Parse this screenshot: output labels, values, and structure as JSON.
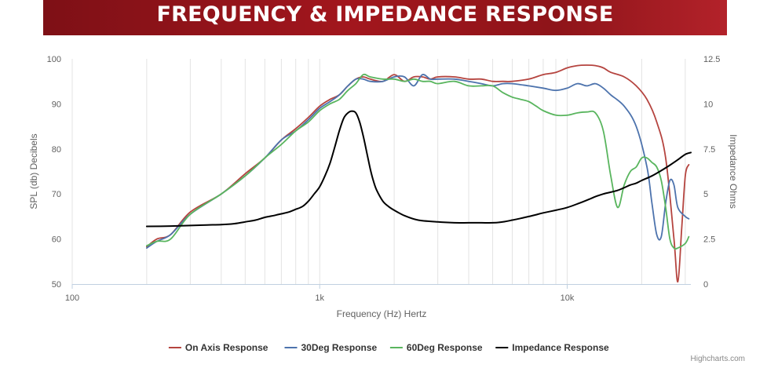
{
  "banner": {
    "title": "FREQUENCY & IMPEDANCE RESPONSE"
  },
  "credit": "Highcharts.com",
  "chart_data": {
    "type": "line",
    "title": "FREQUENCY & IMPEDANCE RESPONSE",
    "xlabel": "Frequency (Hz) Hertz",
    "xscale": "log",
    "xlim": [
      100,
      31600
    ],
    "x_ticks": [
      100,
      1000,
      10000
    ],
    "x_tick_labels": [
      "100",
      "1k",
      "10k"
    ],
    "ylabel": "SPL (db) Decibels",
    "ylim": [
      50,
      100
    ],
    "y_ticks": [
      50,
      60,
      70,
      80,
      90,
      100
    ],
    "y2label": "Impedance Ohms",
    "y2lim": [
      0,
      12.5
    ],
    "y2_ticks": [
      0,
      2.5,
      5,
      7.5,
      10,
      12.5
    ],
    "grid": "vertical",
    "legend_position": "bottom-center",
    "series": [
      {
        "name": "On Axis Response",
        "color": "#b5443f",
        "axis": "left",
        "x": [
          200,
          220,
          250,
          300,
          400,
          500,
          600,
          700,
          800,
          900,
          1000,
          1100,
          1200,
          1300,
          1400,
          1500,
          1600,
          1800,
          2000,
          2200,
          2400,
          2600,
          2800,
          3000,
          3500,
          4000,
          4500,
          5000,
          5500,
          6000,
          7000,
          8000,
          9000,
          10000,
          11000,
          12000,
          13000,
          14000,
          15000,
          17000,
          19000,
          21000,
          23000,
          25000,
          27000,
          28000,
          29000,
          30000,
          31000
        ],
        "y": [
          58.3,
          60,
          61,
          66,
          70,
          74.5,
          78,
          82,
          84.5,
          87,
          89.5,
          91,
          92,
          94,
          95.5,
          96,
          95.5,
          95,
          96.5,
          95,
          96,
          96,
          95.5,
          96,
          96,
          95.5,
          95.5,
          95,
          95,
          95,
          95.5,
          96.5,
          97,
          98,
          98.5,
          98.6,
          98.5,
          98,
          97,
          96,
          94,
          91,
          86,
          78,
          60,
          50.5,
          62,
          74,
          76.5
        ]
      },
      {
        "name": "30Deg Response",
        "color": "#4d73ad",
        "axis": "left",
        "x": [
          200,
          220,
          250,
          300,
          400,
          500,
          600,
          700,
          800,
          900,
          1000,
          1100,
          1200,
          1300,
          1400,
          1500,
          1600,
          1800,
          2000,
          2200,
          2400,
          2600,
          2800,
          3000,
          3500,
          4000,
          4500,
          5000,
          5500,
          6000,
          7000,
          8000,
          9000,
          10000,
          11000,
          12000,
          13000,
          14000,
          15000,
          17000,
          19000,
          21000,
          22000,
          23000,
          24000,
          25000,
          26000,
          27000,
          28000,
          30000,
          31000
        ],
        "y": [
          58,
          59.5,
          61,
          65.5,
          70,
          74,
          78,
          82,
          84,
          86.5,
          89,
          90.5,
          92,
          94,
          95.5,
          95.5,
          95,
          95,
          96,
          96,
          94,
          96.5,
          95.5,
          95.5,
          95.5,
          95,
          94.5,
          94,
          94.5,
          94.5,
          94,
          93.5,
          93,
          93.5,
          94.5,
          94,
          94.5,
          93.5,
          92,
          89.5,
          85,
          76,
          68,
          61,
          60.5,
          68,
          73,
          72,
          67,
          65,
          64.5
        ]
      },
      {
        "name": "60Deg Response",
        "color": "#59b55e",
        "axis": "left",
        "x": [
          200,
          220,
          250,
          300,
          400,
          500,
          600,
          700,
          800,
          900,
          1000,
          1100,
          1200,
          1300,
          1400,
          1500,
          1600,
          1800,
          2000,
          2200,
          2400,
          2600,
          2800,
          3000,
          3500,
          4000,
          4500,
          5000,
          5500,
          6000,
          6500,
          7000,
          7500,
          8000,
          9000,
          10000,
          11000,
          12000,
          13000,
          14000,
          15000,
          16000,
          17000,
          18000,
          19000,
          20000,
          21000,
          22000,
          23000,
          24000,
          25000,
          26000,
          27000,
          28000,
          30000,
          31000
        ],
        "y": [
          58.5,
          59.5,
          60,
          65.5,
          70,
          74,
          78,
          81,
          84,
          86,
          88.5,
          90,
          91,
          93,
          94.5,
          96.5,
          96,
          95.5,
          95.5,
          95,
          95.5,
          95,
          95,
          94.5,
          95,
          94,
          94,
          94,
          92.5,
          91.5,
          91,
          90.5,
          89.5,
          88.5,
          87.5,
          87.5,
          88,
          88.2,
          88,
          84,
          74,
          67,
          72,
          75,
          76,
          78,
          78,
          77,
          76,
          73,
          67,
          60,
          58,
          58,
          59,
          60.5
        ]
      },
      {
        "name": "Impedance Response",
        "color": "#000000",
        "axis": "right",
        "x": [
          200,
          250,
          300,
          350,
          400,
          450,
          500,
          550,
          600,
          650,
          700,
          750,
          800,
          850,
          900,
          950,
          1000,
          1050,
          1100,
          1150,
          1200,
          1250,
          1300,
          1350,
          1400,
          1450,
          1500,
          1550,
          1600,
          1650,
          1700,
          1800,
          1900,
          2000,
          2200,
          2500,
          3000,
          3500,
          4000,
          4500,
          5000,
          5500,
          6000,
          6500,
          7000,
          7500,
          8000,
          9000,
          10000,
          11000,
          12000,
          13000,
          14000,
          15000,
          16000,
          17000,
          18000,
          19000,
          20000,
          22000,
          24000,
          26000,
          28000,
          30000,
          31600
        ],
        "y": [
          3.2,
          3.22,
          3.25,
          3.28,
          3.3,
          3.35,
          3.45,
          3.55,
          3.7,
          3.8,
          3.9,
          4.0,
          4.15,
          4.3,
          4.6,
          5.0,
          5.4,
          6.0,
          6.7,
          7.6,
          8.5,
          9.2,
          9.5,
          9.6,
          9.5,
          9.0,
          8.2,
          7.3,
          6.4,
          5.7,
          5.2,
          4.6,
          4.3,
          4.1,
          3.8,
          3.55,
          3.45,
          3.4,
          3.4,
          3.4,
          3.4,
          3.45,
          3.55,
          3.65,
          3.75,
          3.85,
          3.95,
          4.1,
          4.25,
          4.45,
          4.65,
          4.85,
          5.0,
          5.1,
          5.2,
          5.35,
          5.5,
          5.6,
          5.75,
          6.0,
          6.3,
          6.6,
          6.9,
          7.2,
          7.3
        ]
      }
    ]
  }
}
